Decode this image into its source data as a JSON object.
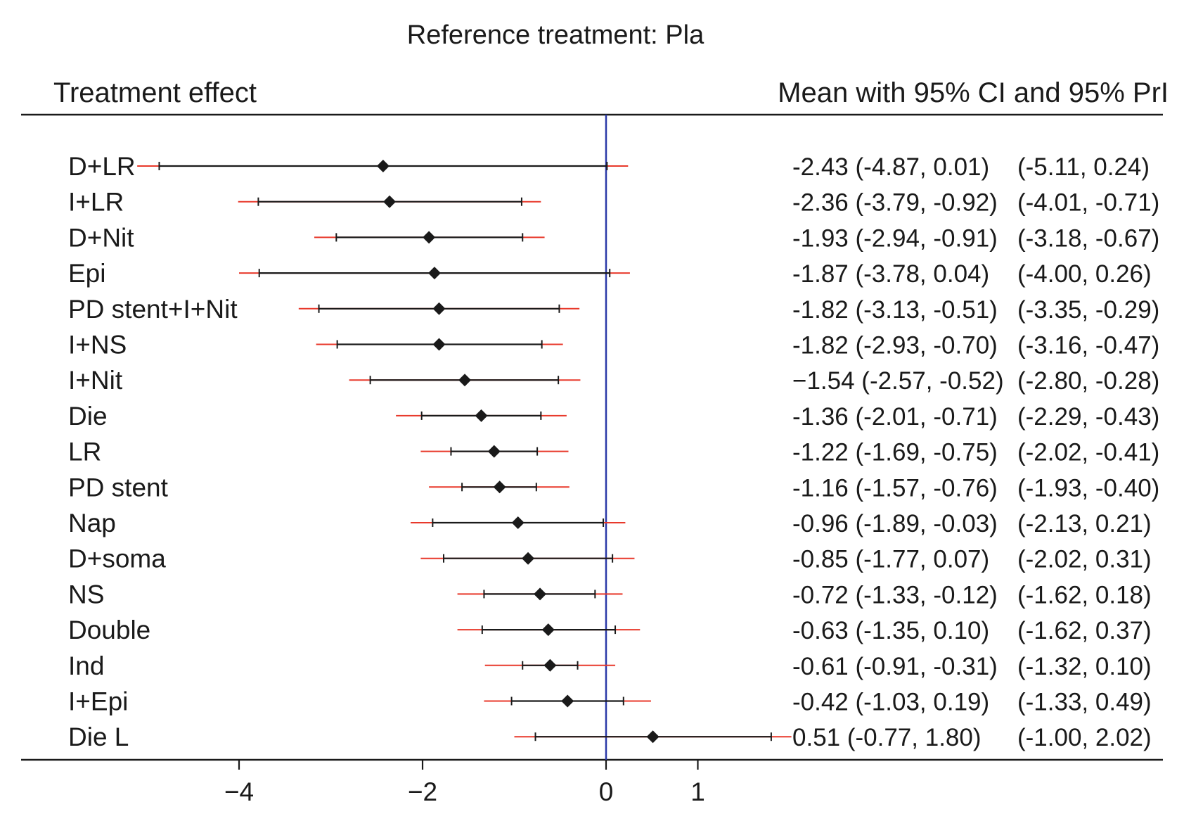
{
  "chart_data": {
    "type": "forest",
    "title": "Reference treatment: Pla",
    "left_header": "Treatment effect",
    "right_header": "Mean with 95% CI and 95% PrI",
    "x_ticks": [
      -4,
      -2,
      0,
      1
    ],
    "x_tick_labels": [
      "−4",
      "−2",
      "0",
      "1"
    ],
    "xlim": [
      -6.5,
      3.0
    ],
    "reference_line": 0,
    "colors": {
      "ci": "#1a1a1a",
      "pri": "#e8392b",
      "reference": "#2b3aa8",
      "marker": "#1a1a1a"
    },
    "rows": [
      {
        "label": "D+LR",
        "mean": -2.43,
        "ci": [
          -4.87,
          0.01
        ],
        "pri": [
          -5.11,
          0.24
        ],
        "ci_text": "-2.43 (-4.87, 0.01)",
        "pri_text": "(-5.11, 0.24)"
      },
      {
        "label": "I+LR",
        "mean": -2.36,
        "ci": [
          -3.79,
          -0.92
        ],
        "pri": [
          -4.01,
          -0.71
        ],
        "ci_text": "-2.36 (-3.79, -0.92)",
        "pri_text": "(-4.01, -0.71)"
      },
      {
        "label": "D+Nit",
        "mean": -1.93,
        "ci": [
          -2.94,
          -0.91
        ],
        "pri": [
          -3.18,
          -0.67
        ],
        "ci_text": "-1.93 (-2.94, -0.91)",
        "pri_text": "(-3.18, -0.67)"
      },
      {
        "label": "Epi",
        "mean": -1.87,
        "ci": [
          -3.78,
          0.04
        ],
        "pri": [
          -4.0,
          0.26
        ],
        "ci_text": "-1.87 (-3.78, 0.04)",
        "pri_text": "(-4.00, 0.26)"
      },
      {
        "label": "PD stent+I+Nit",
        "mean": -1.82,
        "ci": [
          -3.13,
          -0.51
        ],
        "pri": [
          -3.35,
          -0.29
        ],
        "ci_text": "-1.82 (-3.13, -0.51)",
        "pri_text": "(-3.35, -0.29)"
      },
      {
        "label": "I+NS",
        "mean": -1.82,
        "ci": [
          -2.93,
          -0.7
        ],
        "pri": [
          -3.16,
          -0.47
        ],
        "ci_text": "-1.82 (-2.93, -0.70)",
        "pri_text": "(-3.16, -0.47)"
      },
      {
        "label": "I+Nit",
        "mean": -1.54,
        "ci": [
          -2.57,
          -0.52
        ],
        "pri": [
          -2.8,
          -0.28
        ],
        "ci_text": "−1.54 (-2.57, -0.52)",
        "pri_text": "(-2.80, -0.28)"
      },
      {
        "label": "Die",
        "mean": -1.36,
        "ci": [
          -2.01,
          -0.71
        ],
        "pri": [
          -2.29,
          -0.43
        ],
        "ci_text": "-1.36 (-2.01, -0.71)",
        "pri_text": "(-2.29, -0.43)"
      },
      {
        "label": "LR",
        "mean": -1.22,
        "ci": [
          -1.69,
          -0.75
        ],
        "pri": [
          -2.02,
          -0.41
        ],
        "ci_text": "-1.22 (-1.69, -0.75)",
        "pri_text": "(-2.02, -0.41)"
      },
      {
        "label": "PD stent",
        "mean": -1.16,
        "ci": [
          -1.57,
          -0.76
        ],
        "pri": [
          -1.93,
          -0.4
        ],
        "ci_text": "-1.16 (-1.57, -0.76)",
        "pri_text": "(-1.93, -0.40)"
      },
      {
        "label": "Nap",
        "mean": -0.96,
        "ci": [
          -1.89,
          -0.03
        ],
        "pri": [
          -2.13,
          0.21
        ],
        "ci_text": "-0.96 (-1.89, -0.03)",
        "pri_text": "(-2.13, 0.21)"
      },
      {
        "label": "D+soma",
        "mean": -0.85,
        "ci": [
          -1.77,
          0.07
        ],
        "pri": [
          -2.02,
          0.31
        ],
        "ci_text": "-0.85 (-1.77, 0.07)",
        "pri_text": "(-2.02, 0.31)"
      },
      {
        "label": "NS",
        "mean": -0.72,
        "ci": [
          -1.33,
          -0.12
        ],
        "pri": [
          -1.62,
          0.18
        ],
        "ci_text": "-0.72 (-1.33, -0.12)",
        "pri_text": "(-1.62, 0.18)"
      },
      {
        "label": "Double",
        "mean": -0.63,
        "ci": [
          -1.35,
          0.1
        ],
        "pri": [
          -1.62,
          0.37
        ],
        "ci_text": "-0.63 (-1.35, 0.10)",
        "pri_text": "(-1.62, 0.37)"
      },
      {
        "label": "Ind",
        "mean": -0.61,
        "ci": [
          -0.91,
          -0.31
        ],
        "pri": [
          -1.32,
          0.1
        ],
        "ci_text": "-0.61 (-0.91, -0.31)",
        "pri_text": "(-1.32, 0.10)"
      },
      {
        "label": "I+Epi",
        "mean": -0.42,
        "ci": [
          -1.03,
          0.19
        ],
        "pri": [
          -1.33,
          0.49
        ],
        "ci_text": "-0.42 (-1.03, 0.19)",
        "pri_text": "(-1.33, 0.49)"
      },
      {
        "label": "Die L",
        "mean": 0.51,
        "ci": [
          -0.77,
          1.8
        ],
        "pri": [
          -1.0,
          2.02
        ],
        "ci_text": "0.51 (-0.77, 1.80)",
        "pri_text": "(-1.00, 2.02)"
      }
    ]
  }
}
